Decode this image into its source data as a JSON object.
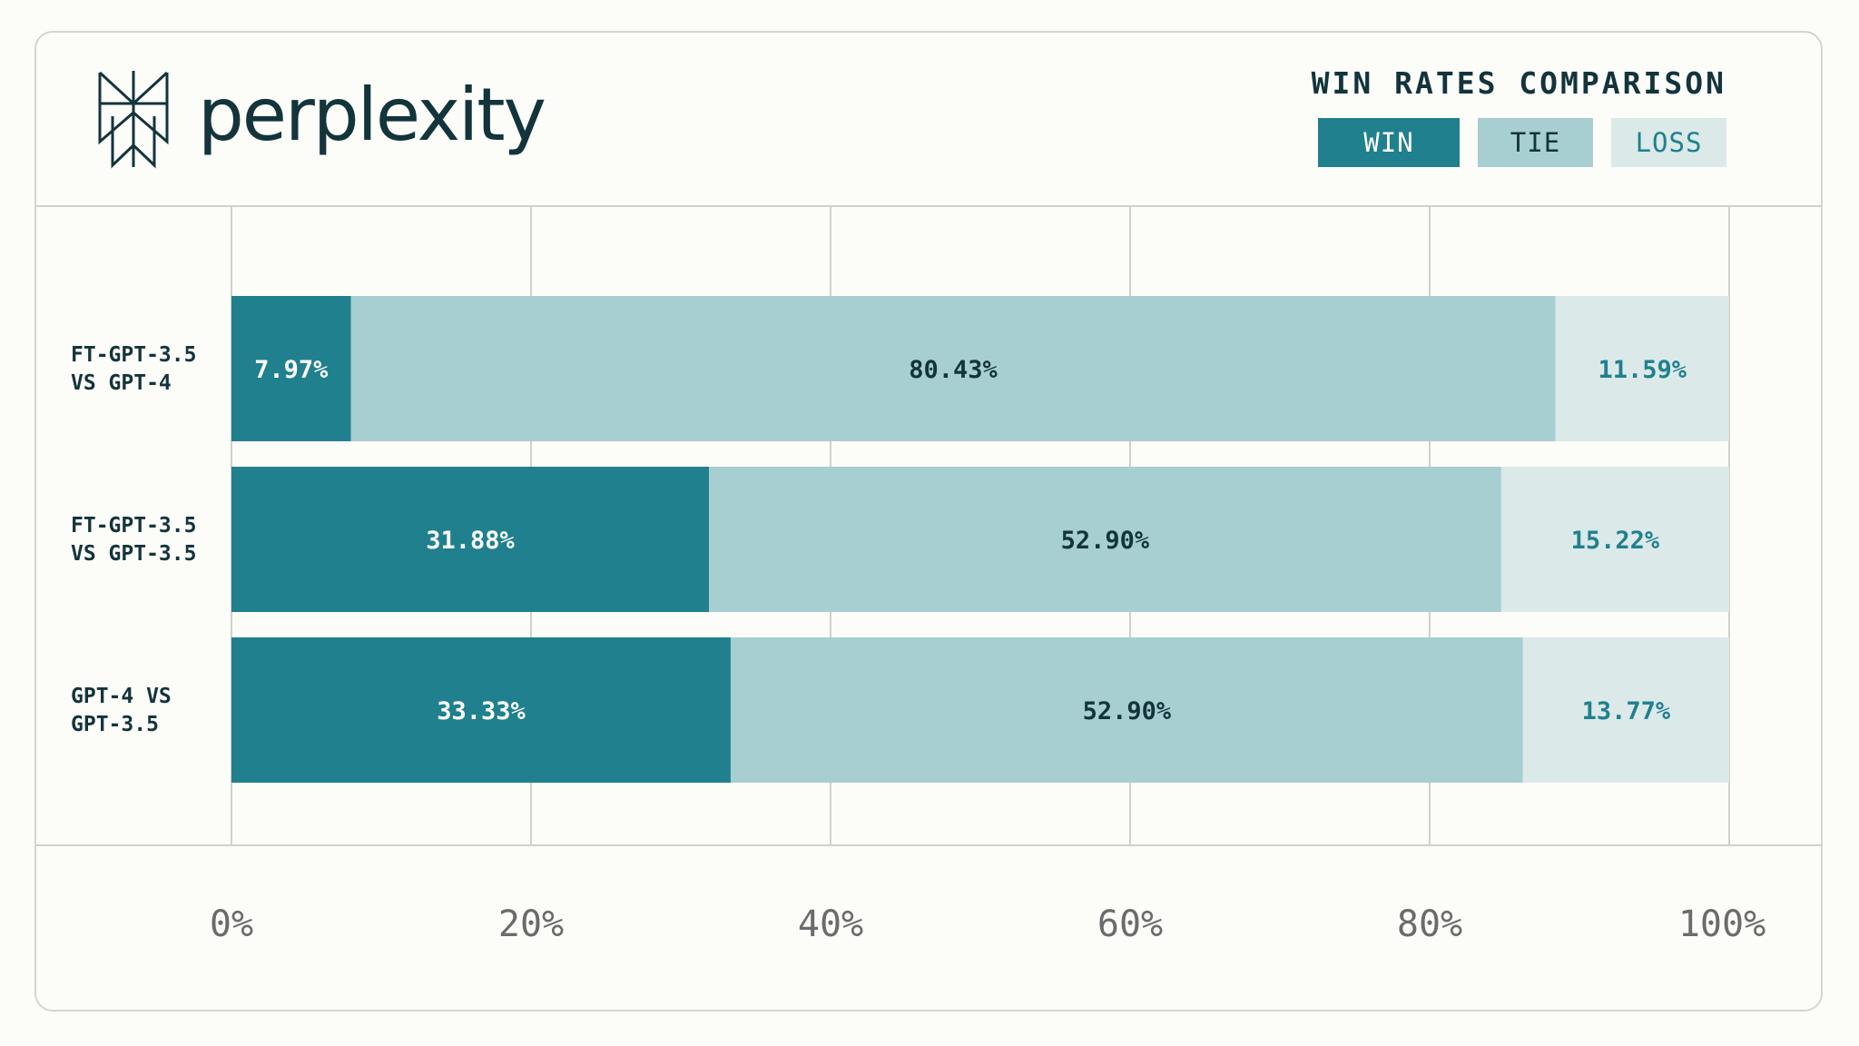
{
  "brand": {
    "name": "perplexity",
    "color": "#13343b"
  },
  "legend": {
    "title": "WIN RATES COMPARISON",
    "items": [
      {
        "label": "WIN",
        "color": "#20808d",
        "text_color": "#ffffff"
      },
      {
        "label": "TIE",
        "color": "#a7ced1",
        "text_color": "#13343b"
      },
      {
        "label": "LOSS",
        "color": "#dbe9e9",
        "text_color": "#20808d"
      }
    ]
  },
  "chart_data": {
    "type": "bar",
    "orientation": "horizontal",
    "stacked": true,
    "title": "WIN RATES COMPARISON",
    "categories": [
      "FT-GPT-3.5 VS GPT-4",
      "FT-GPT-3.5 VS GPT-3.5",
      "GPT-4 VS GPT-3.5"
    ],
    "category_lines": [
      [
        "FT-GPT-3.5",
        "VS GPT-4"
      ],
      [
        "FT-GPT-3.5",
        "VS GPT-3.5"
      ],
      [
        "GPT-4 VS",
        "GPT-3.5"
      ]
    ],
    "series": [
      {
        "name": "WIN",
        "values": [
          7.97,
          31.88,
          33.33
        ],
        "value_labels": [
          "7.97%",
          "31.88%",
          "33.33%"
        ],
        "color": "#20808d"
      },
      {
        "name": "TIE",
        "values": [
          80.43,
          52.9,
          52.9
        ],
        "value_labels": [
          "80.43%",
          "52.90%",
          "52.90%"
        ],
        "color": "#a7ced1"
      },
      {
        "name": "LOSS",
        "values": [
          11.59,
          15.22,
          13.77
        ],
        "value_labels": [
          "11.59%",
          "15.22%",
          "13.77%"
        ],
        "color": "#dbe9e9"
      }
    ],
    "xlim": [
      0,
      100
    ],
    "xticks": [
      0,
      20,
      40,
      60,
      80,
      100
    ],
    "xtick_labels": [
      "0%",
      "20%",
      "40%",
      "60%",
      "80%",
      "100%"
    ],
    "grid": true,
    "legend_position": "top-right",
    "xlabel": "",
    "ylabel": ""
  },
  "colors": {
    "background": "#fcfcf9",
    "border": "#d4d4d0",
    "gridline": "#d0d0cc",
    "tick_text": "#6b6b6b",
    "dark_text": "#13343b"
  }
}
